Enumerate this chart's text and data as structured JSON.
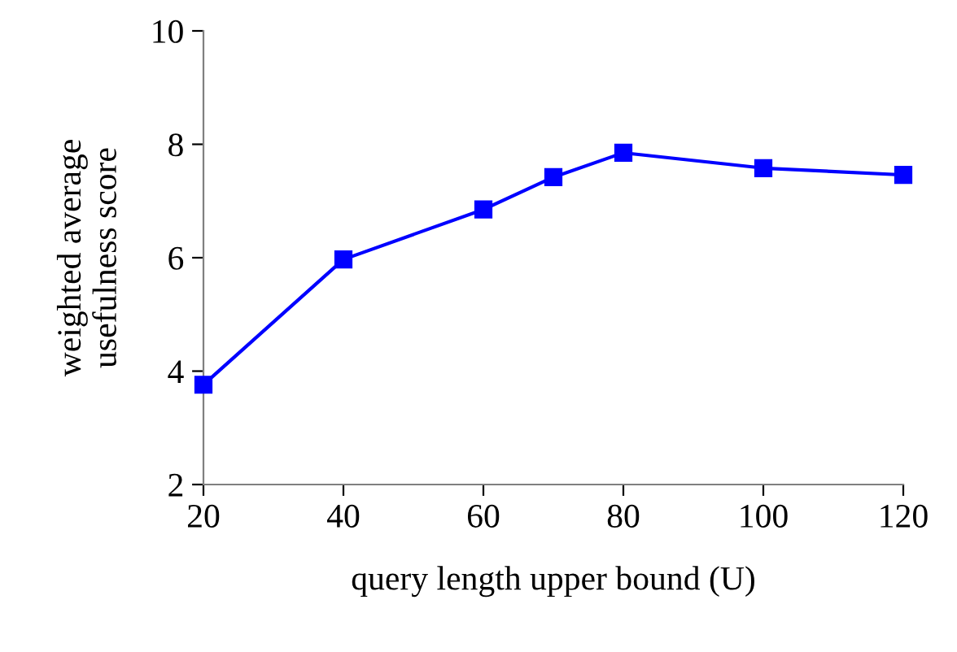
{
  "chart_data": {
    "type": "line",
    "xlabel": "query length upper bound (U)",
    "ylabel": "weighted average\nusefulness score",
    "series": [
      {
        "color": "#0000ff",
        "x": [
          20,
          40,
          60,
          70,
          80,
          100,
          120
        ],
        "values": [
          3.76,
          5.97,
          6.85,
          7.42,
          7.85,
          7.58,
          7.46
        ]
      }
    ],
    "xlim": [
      20,
      120
    ],
    "xticks": [
      20,
      40,
      60,
      80,
      100,
      120
    ],
    "ylim": [
      2,
      10
    ],
    "yticks": [
      2,
      4,
      6,
      8,
      10
    ],
    "marker": "square",
    "line_style": "solid"
  }
}
